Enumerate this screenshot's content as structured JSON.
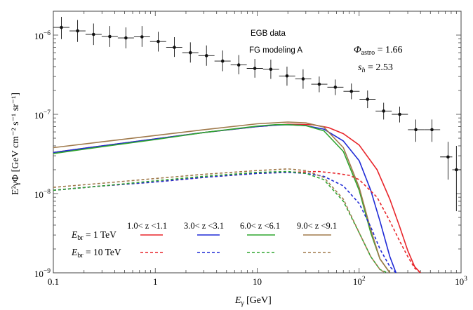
{
  "chart_data": {
    "type": "line",
    "title": "",
    "x_scale": "log",
    "y_scale": "log",
    "xlim": [
      0.1,
      1000
    ],
    "ylim": [
      1e-09,
      2e-06
    ],
    "xlabel": {
      "prefix": "E",
      "sub": "γ",
      "suffix": " [GeV]"
    },
    "ylabel": {
      "text": "E²γΦ [GeV cm⁻² s⁻¹ sr⁻¹]"
    },
    "x_ticks": [
      {
        "value": 0.1,
        "label": "0.1"
      },
      {
        "value": 1,
        "label": "1"
      },
      {
        "value": 10,
        "label": "10"
      },
      {
        "value": 100,
        "base": "10",
        "exp": "2"
      },
      {
        "value": 1000,
        "base": "10",
        "exp": "3"
      }
    ],
    "y_ticks": [
      {
        "value": 1e-09,
        "base": "10",
        "exp": "−9"
      },
      {
        "value": 1e-08,
        "base": "10",
        "exp": "−8"
      },
      {
        "value": 1e-07,
        "base": "10",
        "exp": "−7"
      },
      {
        "value": 1e-06,
        "base": "10",
        "exp": "−6"
      }
    ],
    "annotations": {
      "egb": "EGB data",
      "fg": "FG modeling A",
      "phi_symbol": "Φ",
      "phi_sub": "astro",
      "phi_value": " = 1.66",
      "sh_symbol": "s",
      "sh_sub": "h",
      "sh_value": " = 2.53"
    },
    "legend": {
      "placement": "bottom-center",
      "row_labels": [
        {
          "prefix": "E",
          "sub": "br",
          "value": " = 1 TeV",
          "style": "solid"
        },
        {
          "prefix": "E",
          "sub": "br",
          "value": " = 10 TeV",
          "style": "dashed"
        }
      ],
      "columns": [
        {
          "label": "1.0< z <1.1",
          "color": "#e8252a"
        },
        {
          "label": "3.0< z <3.1",
          "color": "#1f2ad6"
        },
        {
          "label": "6.0< z <6.1",
          "color": "#2fa52f"
        },
        {
          "label": "9.0< z <9.1",
          "color": "#a07a4c"
        }
      ]
    },
    "data_points": [
      {
        "x": 0.12,
        "y": 1.25e-06,
        "xlo": 0.1,
        "xhi": 0.144,
        "ylo": 8.9e-07,
        "yhi": 1.7e-06
      },
      {
        "x": 0.173,
        "y": 1.13e-06,
        "xlo": 0.144,
        "xhi": 0.207,
        "ylo": 8.2e-07,
        "yhi": 1.55e-06
      },
      {
        "x": 0.248,
        "y": 1.02e-06,
        "xlo": 0.207,
        "xhi": 0.298,
        "ylo": 7.5e-07,
        "yhi": 1.4e-06
      },
      {
        "x": 0.358,
        "y": 9.6e-07,
        "xlo": 0.298,
        "xhi": 0.429,
        "ylo": 7.1e-07,
        "yhi": 1.3e-06
      },
      {
        "x": 0.515,
        "y": 9.2e-07,
        "xlo": 0.429,
        "xhi": 0.618,
        "ylo": 6.8e-07,
        "yhi": 1.25e-06
      },
      {
        "x": 0.741,
        "y": 9.5e-07,
        "xlo": 0.618,
        "xhi": 0.889,
        "ylo": 7.1e-07,
        "yhi": 1.3e-06
      },
      {
        "x": 1.07,
        "y": 8.3e-07,
        "xlo": 0.889,
        "xhi": 1.28,
        "ylo": 6.2e-07,
        "yhi": 1.1e-06
      },
      {
        "x": 1.54,
        "y": 7e-07,
        "xlo": 1.28,
        "xhi": 1.84,
        "ylo": 5.3e-07,
        "yhi": 9.4e-07
      },
      {
        "x": 2.21,
        "y": 6e-07,
        "xlo": 1.84,
        "xhi": 2.65,
        "ylo": 4.5e-07,
        "yhi": 8.1e-07
      },
      {
        "x": 3.18,
        "y": 5.5e-07,
        "xlo": 2.65,
        "xhi": 3.81,
        "ylo": 4.1e-07,
        "yhi": 7.4e-07
      },
      {
        "x": 4.58,
        "y": 4.7e-07,
        "xlo": 3.81,
        "xhi": 5.49,
        "ylo": 3.5e-07,
        "yhi": 6.4e-07
      },
      {
        "x": 6.59,
        "y": 4.2e-07,
        "xlo": 5.49,
        "xhi": 7.9,
        "ylo": 3.2e-07,
        "yhi": 5.6e-07
      },
      {
        "x": 9.48,
        "y": 3.8e-07,
        "xlo": 7.9,
        "xhi": 11.4,
        "ylo": 2.9e-07,
        "yhi": 5e-07
      },
      {
        "x": 13.6,
        "y": 3.7e-07,
        "xlo": 11.4,
        "xhi": 16.4,
        "ylo": 2.8e-07,
        "yhi": 4.9e-07
      },
      {
        "x": 19.6,
        "y": 3.05e-07,
        "xlo": 16.4,
        "xhi": 23.6,
        "ylo": 2.3e-07,
        "yhi": 4e-07
      },
      {
        "x": 28.2,
        "y": 2.8e-07,
        "xlo": 23.6,
        "xhi": 33.9,
        "ylo": 2.1e-07,
        "yhi": 3.7e-07
      },
      {
        "x": 40.6,
        "y": 2.4e-07,
        "xlo": 33.9,
        "xhi": 48.8,
        "ylo": 1.9e-07,
        "yhi": 3e-07
      },
      {
        "x": 58.4,
        "y": 2.2e-07,
        "xlo": 48.8,
        "xhi": 70.2,
        "ylo": 1.75e-07,
        "yhi": 2.75e-07
      },
      {
        "x": 84.0,
        "y": 1.95e-07,
        "xlo": 70.2,
        "xhi": 101,
        "ylo": 1.55e-07,
        "yhi": 2.45e-07
      },
      {
        "x": 121,
        "y": 1.55e-07,
        "xlo": 101,
        "xhi": 145,
        "ylo": 1.2e-07,
        "yhi": 2e-07
      },
      {
        "x": 174,
        "y": 1.1e-07,
        "xlo": 145,
        "xhi": 209,
        "ylo": 8.6e-08,
        "yhi": 1.4e-07
      },
      {
        "x": 250,
        "y": 1e-07,
        "xlo": 209,
        "xhi": 301,
        "ylo": 7.9e-08,
        "yhi": 1.25e-07
      },
      {
        "x": 360,
        "y": 6.4e-08,
        "xlo": 301,
        "xhi": 433,
        "ylo": 4.5e-08,
        "yhi": 8.6e-08
      },
      {
        "x": 518,
        "y": 6.4e-08,
        "xlo": 433,
        "xhi": 623,
        "ylo": 4.5e-08,
        "yhi": 8.6e-08
      },
      {
        "x": 745,
        "y": 2.9e-08,
        "xlo": 623,
        "xhi": 820,
        "ylo": 1.5e-08,
        "yhi": 4.5e-08
      },
      {
        "x": 900,
        "y": 2e-08,
        "xlo": 820,
        "xhi": 1000,
        "ylo": 6e-09,
        "yhi": 4e-08
      }
    ],
    "series": [
      {
        "name": "1.0<z<1.1, Ebr = 1 TeV",
        "color": "#e8252a",
        "style": "solid",
        "x": [
          0.1,
          0.3,
          1,
          3,
          10,
          20,
          35,
          50,
          70,
          100,
          150,
          200,
          250,
          300,
          350,
          400
        ],
        "y": [
          3.3e-08,
          4e-08,
          4.9e-08,
          5.9e-08,
          7e-08,
          7.5e-08,
          7.4e-08,
          6.8e-08,
          5.7e-08,
          4.1e-08,
          2e-08,
          8.5e-09,
          3.8e-09,
          1.9e-09,
          1.2e-09,
          1e-09
        ]
      },
      {
        "name": "3.0<z<3.1, Ebr = 1 TeV",
        "color": "#1f2ad6",
        "style": "solid",
        "x": [
          0.1,
          0.3,
          1,
          3,
          10,
          15,
          20,
          30,
          45,
          70,
          100,
          130,
          160,
          200,
          230
        ],
        "y": [
          3.3e-08,
          4e-08,
          4.9e-08,
          5.9e-08,
          7e-08,
          7.3e-08,
          7.4e-08,
          7.2e-08,
          6.5e-08,
          4.6e-08,
          2.6e-08,
          1.1e-08,
          4.5e-09,
          1.6e-09,
          1e-09
        ]
      },
      {
        "name": "6.0<z<6.1, Ebr = 1 TeV",
        "color": "#2fa52f",
        "style": "solid",
        "x": [
          0.1,
          0.3,
          1,
          3,
          10,
          15,
          20,
          30,
          45,
          70,
          100,
          130,
          160,
          200
        ],
        "y": [
          3.2e-08,
          3.9e-08,
          4.8e-08,
          5.9e-08,
          7.1e-08,
          7.4e-08,
          7.4e-08,
          7.2e-08,
          6.2e-08,
          3.4e-08,
          1.1e-08,
          3.2e-09,
          1.5e-09,
          1e-09
        ]
      },
      {
        "name": "9.0<z<9.1, Ebr = 1 TeV",
        "color": "#a07a4c",
        "style": "solid",
        "x": [
          0.1,
          0.3,
          1,
          3,
          10,
          20,
          30,
          45,
          70,
          100,
          130,
          160,
          200
        ],
        "y": [
          3.8e-08,
          4.5e-08,
          5.4e-08,
          6.4e-08,
          7.6e-08,
          8e-08,
          7.8e-08,
          6.9e-08,
          3.8e-08,
          1.2e-08,
          3.5e-09,
          1.5e-09,
          1e-09
        ]
      },
      {
        "name": "1.0<z<1.1, Ebr = 10 TeV",
        "color": "#e8252a",
        "style": "dashed",
        "x": [
          0.1,
          0.3,
          1,
          3,
          10,
          20,
          40,
          60,
          80,
          100,
          150,
          200,
          250,
          300,
          350,
          400
        ],
        "y": [
          1.1e-08,
          1.25e-08,
          1.4e-08,
          1.6e-08,
          1.8e-08,
          1.85e-08,
          1.9e-08,
          1.8e-08,
          1.7e-08,
          1.5e-08,
          9e-09,
          4.5e-09,
          2.5e-09,
          1.6e-09,
          1.15e-09,
          1e-09
        ]
      },
      {
        "name": "3.0<z<3.1, Ebr = 10 TeV",
        "color": "#1f2ad6",
        "style": "dashed",
        "x": [
          0.1,
          0.3,
          1,
          3,
          10,
          20,
          30,
          45,
          70,
          100,
          130,
          160,
          200,
          230
        ],
        "y": [
          1.1e-08,
          1.25e-08,
          1.4e-08,
          1.6e-08,
          1.8e-08,
          1.85e-08,
          1.8e-08,
          1.65e-08,
          1.25e-08,
          7.5e-09,
          3.8e-09,
          2e-09,
          1.2e-09,
          1e-09
        ]
      },
      {
        "name": "6.0<z<6.1, Ebr = 10 TeV",
        "color": "#2fa52f",
        "style": "dashed",
        "x": [
          0.1,
          0.3,
          1,
          3,
          10,
          20,
          30,
          45,
          70,
          100,
          130,
          160,
          190
        ],
        "y": [
          1.1e-08,
          1.25e-08,
          1.45e-08,
          1.65e-08,
          1.85e-08,
          1.9e-08,
          1.8e-08,
          1.5e-08,
          8e-09,
          3.2e-09,
          1.6e-09,
          1.1e-09,
          1e-09
        ]
      },
      {
        "name": "9.0<z<9.1, Ebr = 10 TeV",
        "color": "#a07a4c",
        "style": "dashed",
        "x": [
          0.1,
          0.3,
          1,
          3,
          10,
          20,
          30,
          45,
          70,
          100,
          130,
          160,
          180
        ],
        "y": [
          1.2e-08,
          1.35e-08,
          1.55e-08,
          1.75e-08,
          1.95e-08,
          2.05e-08,
          1.95e-08,
          1.6e-08,
          8.5e-09,
          3.2e-09,
          1.6e-09,
          1.1e-09,
          1e-09
        ]
      }
    ]
  }
}
